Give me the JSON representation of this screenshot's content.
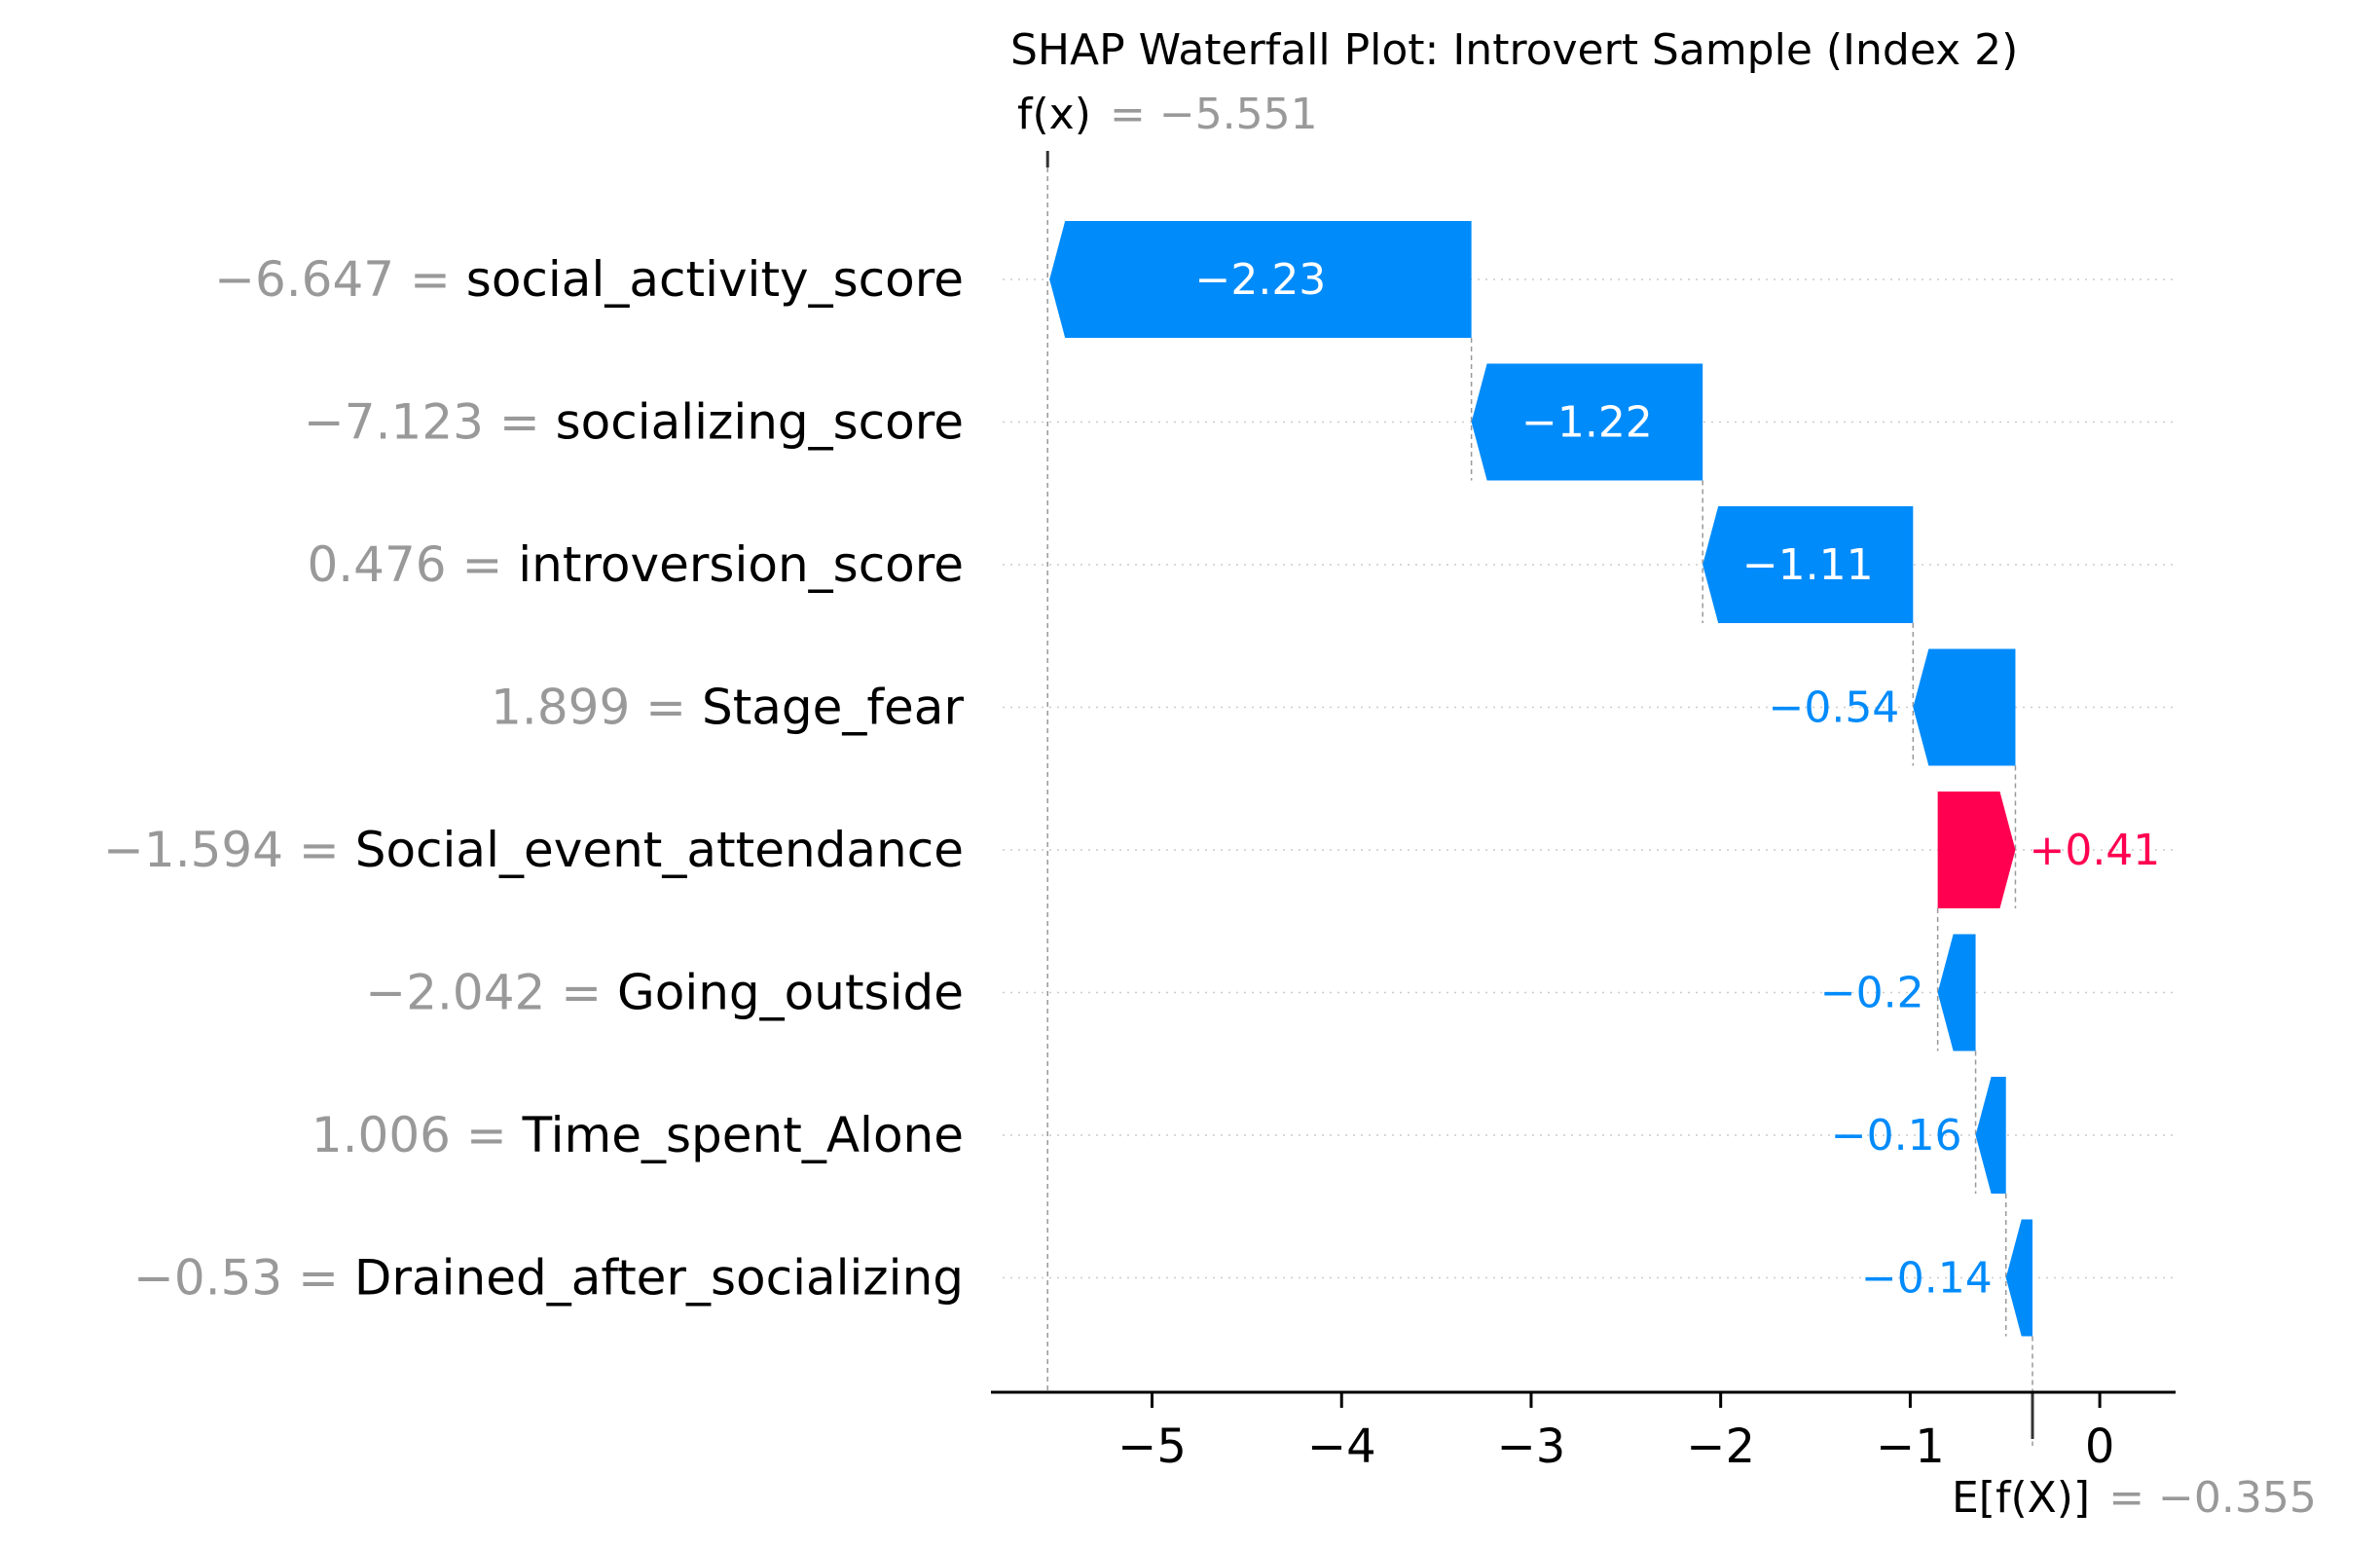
{
  "chart_data": {
    "type": "waterfall",
    "title": "SHAP Waterfall Plot: Introvert Sample (Index 2)",
    "fx": {
      "label": "f(x)",
      "value": "= −5.551",
      "number": -5.551
    },
    "base": {
      "label": "E[f(X)]",
      "value": "= −0.355",
      "number": -0.355
    },
    "xlim": [
      -5.85,
      0.4
    ],
    "x_ticks": [
      {
        "value": -5,
        "label": "−5"
      },
      {
        "value": -4,
        "label": "−4"
      },
      {
        "value": -3,
        "label": "−3"
      },
      {
        "value": -2,
        "label": "−2"
      },
      {
        "value": -1,
        "label": "−1"
      },
      {
        "value": 0,
        "label": "0"
      }
    ],
    "features": [
      {
        "name": "social_activity_score",
        "feature_value": "−6.647 =",
        "shap": -2.226,
        "label": "−2.23"
      },
      {
        "name": "socializing_score",
        "feature_value": "−7.123 =",
        "shap": -1.22,
        "label": "−1.22"
      },
      {
        "name": "introversion_score",
        "feature_value": "0.476 =",
        "shap": -1.11,
        "label": "−1.11"
      },
      {
        "name": "Stage_fear",
        "feature_value": "1.899 =",
        "shap": -0.54,
        "label": "−0.54"
      },
      {
        "name": "Social_event_attendance",
        "feature_value": "−1.594 =",
        "shap": 0.41,
        "label": "+0.41"
      },
      {
        "name": "Going_outside",
        "feature_value": "−2.042 =",
        "shap": -0.2,
        "label": "−0.2"
      },
      {
        "name": "Time_spent_Alone",
        "feature_value": "1.006 =",
        "shap": -0.16,
        "label": "−0.16"
      },
      {
        "name": "Drained_after_socializing",
        "feature_value": "−0.53 =",
        "shap": -0.14,
        "label": "−0.14"
      }
    ],
    "colors": {
      "negative": "#008bfb",
      "positive": "#ff0051",
      "muted": "#999999",
      "grid": "#cccccc"
    }
  }
}
